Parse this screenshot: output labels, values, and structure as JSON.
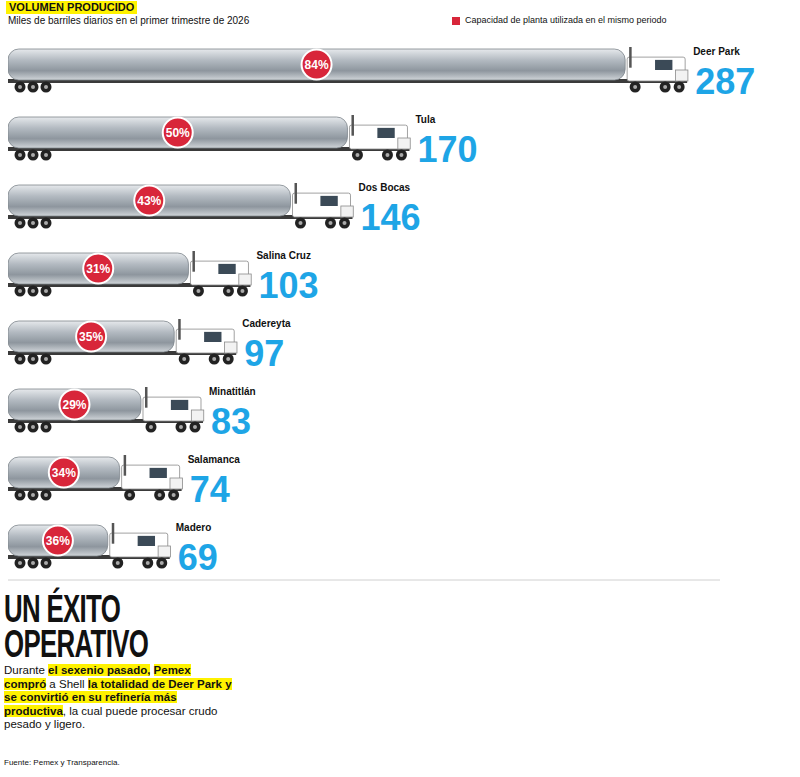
{
  "chart_data": {
    "type": "bar",
    "orientation": "horizontal",
    "title": "VOLUMEN PRODUCIDO",
    "subtitle": "Miles de barriles diarios en el primer trimestre de 2026",
    "categories": [
      "Deer Park",
      "Tula",
      "Dos Bocas",
      "Salina Cruz",
      "Cadereyta",
      "Minatitlán",
      "Salamanca",
      "Madero"
    ],
    "values": [
      287,
      170,
      146,
      103,
      97,
      83,
      74,
      69
    ],
    "color": "#b4bbc2",
    "data_labels": true,
    "tick_labels": false,
    "grid": false,
    "legend": "top-right",
    "xlim": [
      0,
      300
    ],
    "capacity_utilization": {
      "label": "Capacidad de planta utilizada en el mismo periodo",
      "color": "#d8263a",
      "values": [
        84,
        50,
        43,
        31,
        35,
        29,
        34,
        36
      ],
      "value_labels": [
        "84%",
        "50%",
        "43%",
        "31%",
        "35%",
        "29%",
        "34%",
        "36%"
      ]
    },
    "annotation": {
      "title": "UN ÉXITO OPERATIVO",
      "text": [
        {
          "text": "Durante "
        },
        {
          "text": "el sexenio pasado,",
          "highlight": true
        },
        {
          "text": " "
        },
        {
          "text": "Pemex compró",
          "highlight": true
        },
        {
          "text": " a Shell "
        },
        {
          "text": "la totalidad de Deer Park y se convirtió en su refinería más productiva",
          "highlight": true
        },
        {
          "text": ", la cual puede procesar crudo pesado y ligero."
        }
      ]
    },
    "source": "Fuente: Pemex y Transparencia."
  }
}
